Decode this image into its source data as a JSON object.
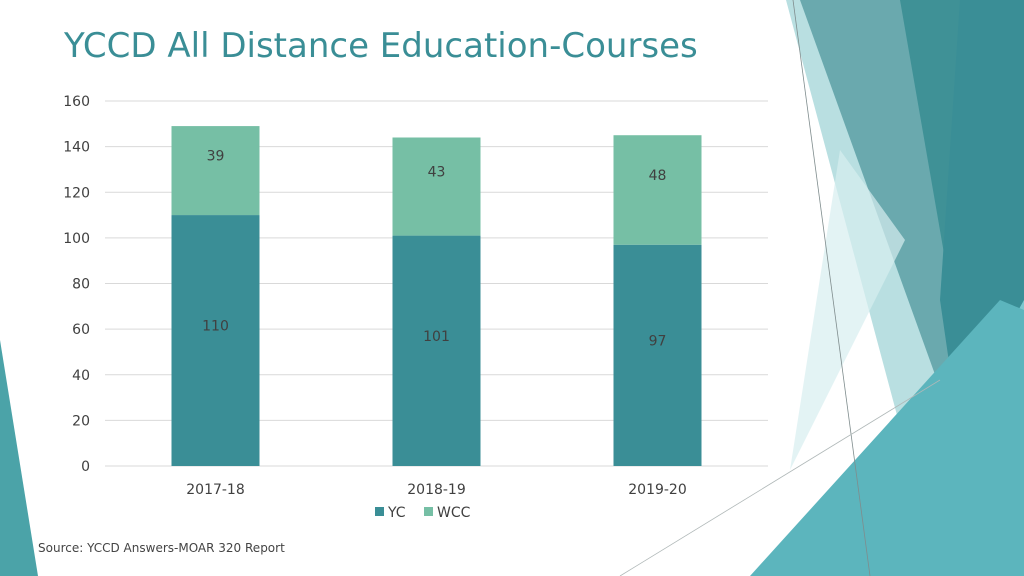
{
  "title": "YCCD All Distance Education-Courses",
  "source": "Source: YCCD Answers-MOAR 320 Report",
  "colors": {
    "title": "#3a8e96",
    "yc": "#3a8e96",
    "wcc": "#76bfa5",
    "grid": "#d9d9d9",
    "axis_text": "#404040",
    "decor_dark": "#2f8a8f",
    "decor_mid": "#4ba3a8",
    "decor_light": "#7cc8cf",
    "decor_pale": "#b9dfe1"
  },
  "chart_data": {
    "type": "bar",
    "stacked": true,
    "categories": [
      "2017-18",
      "2018-19",
      "2019-20"
    ],
    "series": [
      {
        "name": "YC",
        "values": [
          110,
          101,
          97
        ]
      },
      {
        "name": "WCC",
        "values": [
          39,
          43,
          48
        ]
      }
    ],
    "ylim": [
      0,
      160
    ],
    "yticks": [
      0,
      20,
      40,
      60,
      80,
      100,
      120,
      140,
      160
    ],
    "grid": true,
    "legend": "bottom",
    "data_labels": true
  }
}
